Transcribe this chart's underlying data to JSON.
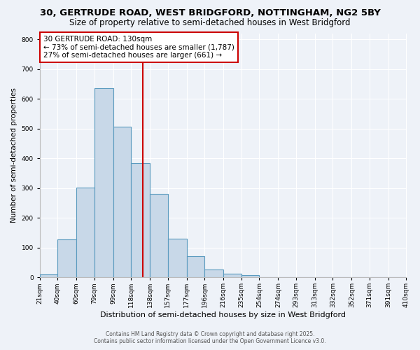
{
  "title1": "30, GERTRUDE ROAD, WEST BRIDGFORD, NOTTINGHAM, NG2 5BY",
  "title2": "Size of property relative to semi-detached houses in West Bridgford",
  "xlabel": "Distribution of semi-detached houses by size in West Bridgford",
  "ylabel": "Number of semi-detached properties",
  "bin_edges": [
    21,
    40,
    60,
    79,
    99,
    118,
    138,
    157,
    177,
    196,
    216,
    235,
    254,
    274,
    293,
    313,
    332,
    352,
    371,
    391,
    410
  ],
  "bar_heights": [
    10,
    128,
    302,
    635,
    505,
    383,
    280,
    130,
    72,
    26,
    12,
    7,
    0,
    0,
    0,
    0,
    0,
    0,
    0,
    0
  ],
  "bar_color": "#c8d8e8",
  "bar_edge_color": "#5a9abf",
  "vline_x": 130,
  "vline_color": "#cc0000",
  "ylim": [
    0,
    820
  ],
  "yticks": [
    0,
    100,
    200,
    300,
    400,
    500,
    600,
    700,
    800
  ],
  "annotation_title": "30 GERTRUDE ROAD: 130sqm",
  "annotation_line1": "← 73% of semi-detached houses are smaller (1,787)",
  "annotation_line2": "27% of semi-detached houses are larger (661) →",
  "annot_box_color": "#ffffff",
  "annot_box_edge_color": "#cc0000",
  "footer_line1": "Contains HM Land Registry data © Crown copyright and database right 2025.",
  "footer_line2": "Contains public sector information licensed under the Open Government Licence v3.0.",
  "background_color": "#eef2f8",
  "grid_color": "#ffffff",
  "title1_fontsize": 9.5,
  "title2_fontsize": 8.5,
  "xlabel_fontsize": 8,
  "ylabel_fontsize": 7.5,
  "tick_fontsize": 6.5,
  "annot_fontsize": 7.5,
  "footer_fontsize": 5.5
}
